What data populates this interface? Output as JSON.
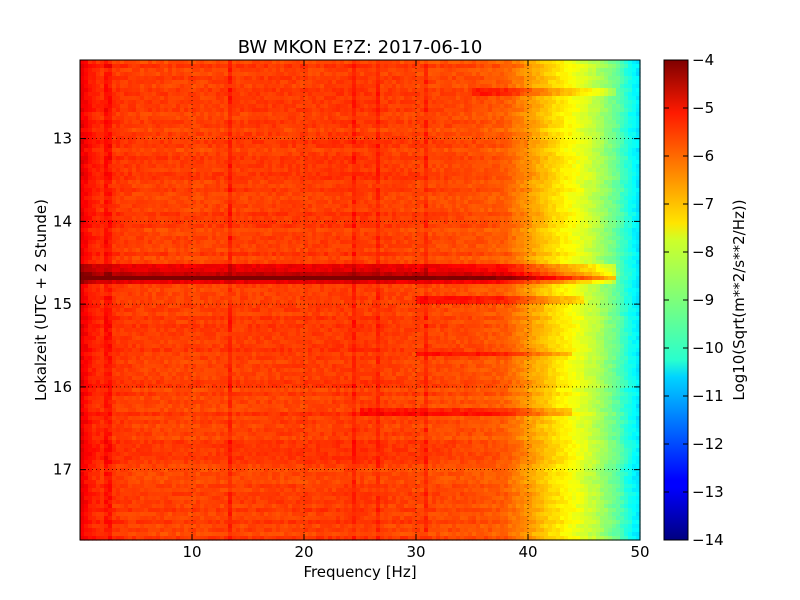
{
  "chart_data": {
    "type": "heatmap",
    "title": "BW MKON E?Z: 2017-06-10",
    "xlabel": "Frequency [Hz]",
    "ylabel": "Lokalzeit (UTC + 2 Stunde)",
    "xlim": [
      0,
      50
    ],
    "ylim": [
      12.05,
      17.85
    ],
    "y_inverted": true,
    "x_ticks": [
      10,
      20,
      30,
      40,
      50
    ],
    "y_ticks": [
      13,
      14,
      15,
      16,
      17
    ],
    "grid": true,
    "colormap": "jet",
    "colorbar": {
      "label": "Log10(Sqrt(m**2/s**2/Hz))",
      "range": [
        -14,
        -4
      ],
      "ticks": [
        -4,
        -5,
        -6,
        -7,
        -8,
        -9,
        -10,
        -11,
        -12,
        -13,
        -14
      ]
    },
    "base_spectrum": {
      "frequency_hz": [
        0,
        1,
        2,
        5,
        10,
        15,
        20,
        25,
        30,
        35,
        38,
        40,
        42,
        44,
        46,
        48,
        49,
        50
      ],
      "log10_amplitude": [
        -5.0,
        -5.5,
        -5.7,
        -5.85,
        -5.9,
        -5.85,
        -5.85,
        -5.8,
        -5.9,
        -6.0,
        -6.15,
        -6.7,
        -7.3,
        -7.8,
        -8.4,
        -9.3,
        -10.0,
        -10.5
      ]
    },
    "horizontal_features": [
      {
        "time": 12.45,
        "f_from": 35,
        "f_to": 48,
        "delta": 0.5
      },
      {
        "time": 14.55,
        "f_from": 0,
        "f_to": 48,
        "delta": 0.8
      },
      {
        "time": 14.65,
        "f_from": 0,
        "f_to": 48,
        "delta": 1.1
      },
      {
        "time": 14.72,
        "f_from": 0,
        "f_to": 48,
        "delta": 0.9
      },
      {
        "time": 14.95,
        "f_from": 30,
        "f_to": 45,
        "delta": 0.6
      },
      {
        "time": 15.6,
        "f_from": 30,
        "f_to": 44,
        "delta": 0.6
      },
      {
        "time": 16.3,
        "f_from": 25,
        "f_to": 44,
        "delta": 0.5
      }
    ],
    "vertical_features": [
      {
        "freq": 2.5,
        "delta": 0.4
      },
      {
        "freq": 13.5,
        "delta": 0.4
      },
      {
        "freq": 24.5,
        "delta": 0.35
      },
      {
        "freq": 26.5,
        "delta": 0.3
      },
      {
        "freq": 31,
        "delta": 0.35
      }
    ]
  }
}
